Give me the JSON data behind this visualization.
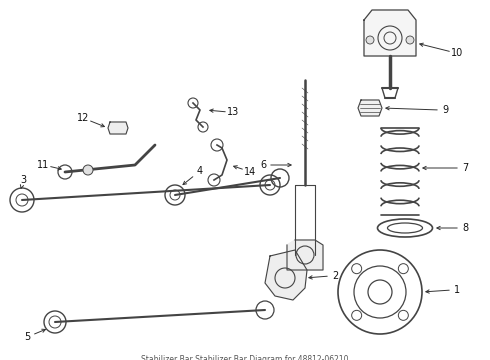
{
  "bg_color": "#ffffff",
  "line_color": "#444444",
  "label_color": "#111111",
  "arrow_color": "#333333",
  "subtitle": "Stabilizer Bar Stabilizer Bar Diagram for 48812-06210",
  "fig_width": 4.9,
  "fig_height": 3.6,
  "dpi": 100
}
